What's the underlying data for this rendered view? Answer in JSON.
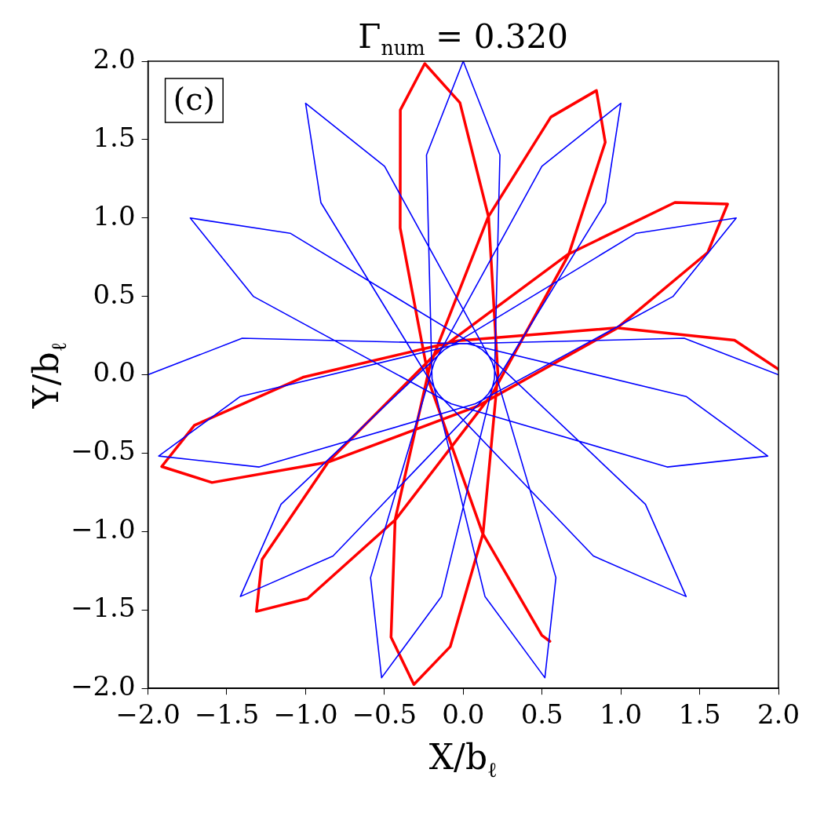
{
  "chart_data": {
    "type": "line",
    "title": "Γ$_{num}$ = 0.320",
    "xlabel": "X/b$_{ℓ}$",
    "ylabel": "Y/b$_{ℓ}$",
    "annotations": [
      "(c)"
    ],
    "xlim": [
      -2,
      2
    ],
    "ylim": [
      -2,
      2
    ],
    "xticks": [
      {
        "value": -2,
        "label": "−2.0"
      },
      {
        "value": -1.5,
        "label": "−1.5"
      },
      {
        "value": -1,
        "label": "−1.0"
      },
      {
        "value": -0.5,
        "label": "−0.5"
      },
      {
        "value": 0,
        "label": "0.0"
      },
      {
        "value": 0.5,
        "label": "0.5"
      },
      {
        "value": 1,
        "label": "1.0"
      },
      {
        "value": 1.5,
        "label": "1.5"
      },
      {
        "value": 2,
        "label": "2.0"
      }
    ],
    "yticks": [
      {
        "value": -2,
        "label": "−2.0"
      },
      {
        "value": -1.5,
        "label": "−1.5"
      },
      {
        "value": -1,
        "label": "−1.0"
      },
      {
        "value": -0.5,
        "label": "−0.5"
      },
      {
        "value": 0,
        "label": "0.0"
      },
      {
        "value": 0.5,
        "label": "0.5"
      },
      {
        "value": 1,
        "label": "1.0"
      },
      {
        "value": 1.5,
        "label": "1.5"
      },
      {
        "value": 2,
        "label": "2.0"
      }
    ],
    "grid": false,
    "legend": false,
    "marker": "none",
    "line_style": "solid",
    "series": [
      {
        "color": "#0000ff",
        "x": [
          2,
          1.402,
          -0.026,
          -1.414,
          -1.932,
          -1.294,
          0.077,
          1.33,
          1.732,
          1.098,
          -0.122,
          -1.156,
          -1.414,
          -0.826,
          0.159,
          0.903,
          1,
          0.499,
          -0.185,
          -0.588,
          -0.518,
          -0.138,
          0.198,
          0.233,
          0,
          -0.233,
          -0.198,
          0.138,
          0.518,
          0.588,
          0.185,
          -0.499,
          -1,
          -0.903,
          -0.159,
          0.826,
          1.414,
          1.156,
          0.122,
          -1.098,
          -1.732,
          -1.33,
          -0.077,
          1.294,
          1.932,
          1.414,
          0.026,
          -1.402,
          -2
        ],
        "values": [
          0,
          0.233,
          0.198,
          -0.138,
          -0.518,
          -0.588,
          -0.185,
          0.499,
          1,
          0.903,
          0.159,
          -0.826,
          -1.414,
          -1.156,
          -0.122,
          1.098,
          1.732,
          1.33,
          0.077,
          -1.294,
          -1.932,
          -1.414,
          -0.026,
          1.402,
          2,
          1.402,
          -0.026,
          -1.414,
          -1.932,
          -1.294,
          0.077,
          1.33,
          1.732,
          1.098,
          -0.122,
          -1.156,
          -1.414,
          -0.826,
          0.159,
          0.903,
          1,
          0.499,
          -0.185,
          -0.588,
          -0.518,
          -0.138,
          0.198,
          0.233,
          0
        ]
      },
      {
        "color": "#ff0000",
        "x": [
          2,
          1.721,
          0.973,
          -0.034,
          -1.017,
          -1.705,
          -1.913,
          -1.594,
          -0.853,
          0.093,
          0.974,
          1.551,
          1.677,
          1.343,
          0.666,
          -0.144,
          -0.854,
          -1.276,
          -1.312,
          -0.988,
          -0.429,
          0.185,
          0.669,
          0.901,
          0.845,
          0.556,
          0.158,
          -0.21,
          -0.432,
          -0.458,
          -0.313,
          -0.082,
          0.126,
          0.22,
          0.161,
          -0.021,
          -0.244,
          -0.399,
          -0.4,
          -0.213,
          0.123,
          0.499,
          0.55
        ],
        "values": [
          0.035,
          0.221,
          0.299,
          0.217,
          -0.016,
          -0.322,
          -0.585,
          -0.687,
          -0.556,
          -0.199,
          0.296,
          0.78,
          1.089,
          1.099,
          0.769,
          0.166,
          -0.553,
          -1.177,
          -1.509,
          -1.427,
          -0.923,
          -0.12,
          0.767,
          1.483,
          1.813,
          1.644,
          1.006,
          0.064,
          -0.922,
          -1.674,
          -1.975,
          -1.733,
          -1.01,
          0.004,
          1.005,
          1.735,
          1.985,
          1.689,
          0.936,
          -0.057,
          -1.011,
          -1.662,
          -1.7
        ]
      }
    ]
  }
}
